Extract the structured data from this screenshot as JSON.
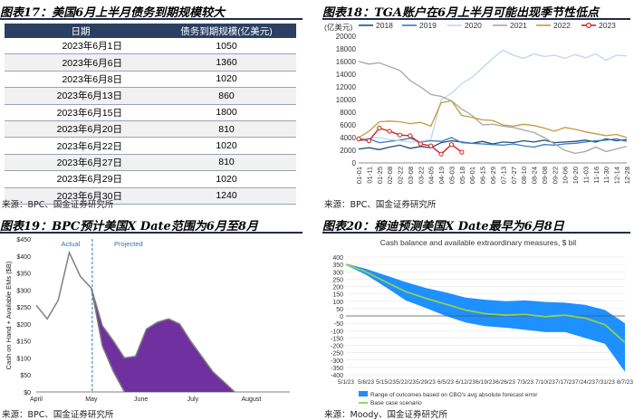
{
  "panels": {
    "p17": {
      "title": "图表17：美国6月上半月债务到期规模较大",
      "source": "来源：BPC、国金证券研究所"
    },
    "p18": {
      "title": "图表18：TGA账户在6月上半月可能出现季节性低点",
      "source": "来源：BPC、国金证券研究所"
    },
    "p19": {
      "title": "图表19：BPC预计美国X Date范围为6月至8月",
      "source": "来源：BPC、国金证券研究所"
    },
    "p20": {
      "title": "图表20：穆迪预测美国X Date最早为6月8日",
      "source": "来源：Moody、国金证券研究所"
    }
  },
  "chart_data": [
    {
      "type": "table",
      "headers": [
        "日期",
        "债务到期规模(亿美元)"
      ],
      "rows": [
        [
          "2023年6月1日",
          "1050"
        ],
        [
          "2023年6月6日",
          "1360"
        ],
        [
          "2023年6月8日",
          "1020"
        ],
        [
          "2023年6月13日",
          "860"
        ],
        [
          "2023年6月15日",
          "1800"
        ],
        [
          "2023年6月20日",
          "810"
        ],
        [
          "2023年6月22日",
          "1020"
        ],
        [
          "2023年6月27日",
          "810"
        ],
        [
          "2023年6月29日",
          "1020"
        ],
        [
          "2023年6月30日",
          "1240"
        ]
      ]
    },
    {
      "type": "line",
      "unit_label": "(亿美元)",
      "ylim": [
        0,
        20000
      ],
      "yticks": [
        0,
        2000,
        4000,
        6000,
        8000,
        10000,
        12000,
        14000,
        16000,
        18000,
        20000
      ],
      "xticks": [
        "01-01",
        "01-11",
        "01-25",
        "02-08",
        "02-22",
        "03-08",
        "03-22",
        "04-05",
        "04-19",
        "05-03",
        "05-18",
        "06-01",
        "06-15",
        "06-29",
        "07-13",
        "07-27",
        "08-10",
        "08-24",
        "09-08",
        "09-22",
        "10-06",
        "10-20",
        "11-03",
        "11-16",
        "11-30",
        "12-14",
        "12-28"
      ],
      "series": [
        {
          "name": "2018",
          "color": "#1f4e79",
          "values": [
            2200,
            2400,
            2100,
            2500,
            2800,
            2300,
            2600,
            2400,
            3200,
            3500,
            3300,
            3100,
            3400,
            3000,
            3300,
            3200,
            3500,
            3300,
            3600,
            3200,
            3300,
            3400,
            3600,
            3300,
            3800,
            3500,
            3700
          ]
        },
        {
          "name": "2019",
          "color": "#3b7bc0",
          "values": [
            3500,
            3800,
            3200,
            3400,
            3600,
            3900,
            3300,
            3500,
            3400,
            4000,
            3200,
            3100,
            3000,
            2900,
            2800,
            3000,
            2700,
            2500,
            2900,
            2800,
            3000,
            3100,
            3300,
            3500,
            3600,
            3800,
            3400
          ]
        },
        {
          "name": "2020",
          "color": "#bcd7ee",
          "values": [
            3800,
            3900,
            4000,
            3700,
            3500,
            3300,
            3400,
            3700,
            10000,
            11000,
            12500,
            13500,
            15000,
            16500,
            17800,
            17000,
            16500,
            17200,
            16800,
            17000,
            16500,
            17100,
            16600,
            17200,
            16200,
            17000,
            16900
          ]
        },
        {
          "name": "2021",
          "color": "#a6a6a6",
          "values": [
            16000,
            15600,
            15800,
            15200,
            14600,
            13000,
            12000,
            10800,
            10500,
            9800,
            8500,
            7500,
            6000,
            6100,
            5800,
            5600,
            5200,
            4800,
            4000,
            3000,
            2000,
            1500,
            1800,
            2500,
            1800,
            2200,
            2600
          ]
        },
        {
          "name": "2022",
          "color": "#c49a3c",
          "values": [
            4000,
            5000,
            6500,
            6600,
            6500,
            6200,
            6400,
            5800,
            9500,
            9800,
            7500,
            7200,
            6800,
            6700,
            6000,
            5800,
            6100,
            5900,
            5500,
            5000,
            5600,
            5300,
            4900,
            4600,
            4300,
            4500,
            4000
          ]
        },
        {
          "name": "2023",
          "color": "#d62020",
          "values": [
            3800,
            3500,
            5500,
            5000,
            4400,
            4300,
            3000,
            2700,
            1400,
            2900,
            1700
          ]
        }
      ]
    },
    {
      "type": "area",
      "ylabel": "Cash on Hand + Available EMs ($B)",
      "ylim": [
        0,
        450
      ],
      "yticks": [
        "$0",
        "$50",
        "$100",
        "$150",
        "$200",
        "$250",
        "$300",
        "$350",
        "$400",
        "$450"
      ],
      "xlabels": [
        "April",
        "May",
        "June",
        "July",
        "August"
      ],
      "annotations": [
        "Actual",
        "Projected"
      ],
      "x": [
        0,
        1,
        2,
        3,
        4,
        5,
        6,
        7,
        8,
        9,
        10,
        11,
        12,
        13,
        14,
        15,
        16,
        17,
        18,
        19,
        20,
        21,
        22,
        23
      ],
      "actual": [
        255,
        215,
        270,
        410,
        340,
        305
      ],
      "projected_upper": [
        null,
        null,
        null,
        null,
        null,
        305,
        195,
        150,
        100,
        105,
        185,
        205,
        215,
        200,
        150,
        105,
        60,
        30,
        0,
        null,
        null,
        null,
        null,
        null
      ],
      "projected_lower": [
        null,
        null,
        null,
        null,
        null,
        305,
        135,
        60,
        0,
        null,
        null,
        null,
        null,
        null,
        null,
        null,
        null,
        null,
        null,
        null,
        null,
        null,
        null,
        null
      ]
    },
    {
      "type": "area",
      "title": "Cash balance and available extraordinary measures, $ bil",
      "ylim": [
        -400,
        400
      ],
      "yticks": [
        400,
        350,
        300,
        250,
        200,
        150,
        100,
        50,
        0,
        -50,
        -100,
        -150,
        -200,
        -250,
        -300,
        -350,
        -400
      ],
      "xticks": [
        "5/1/23",
        "5/8/23",
        "5/15/23",
        "5/22/23",
        "5/29/23",
        "6/5/23",
        "6/12/23",
        "6/19/23",
        "6/26/23",
        "7/3/23",
        "7/10/23",
        "7/17/23",
        "7/24/23",
        "7/31/23",
        "8/7/23"
      ],
      "legend": [
        "Range of outcomes based on CBO's avg absolute forecast error",
        "Base case scenario"
      ],
      "base": [
        350,
        300,
        230,
        165,
        120,
        80,
        40,
        15,
        5,
        10,
        -5,
        5,
        -15,
        -60,
        -180
      ],
      "upper": [
        355,
        320,
        275,
        230,
        190,
        160,
        125,
        110,
        100,
        105,
        95,
        90,
        75,
        40,
        -50
      ],
      "lower": [
        345,
        280,
        195,
        105,
        55,
        0,
        -45,
        -70,
        -80,
        -95,
        -110,
        -110,
        -150,
        -190,
        -380
      ]
    }
  ]
}
